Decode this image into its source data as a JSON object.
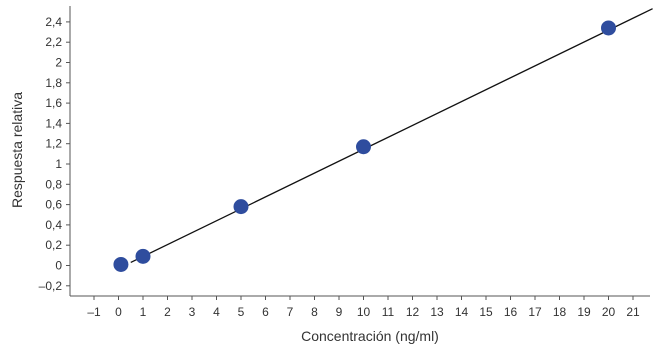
{
  "chart_data": {
    "type": "scatter",
    "title": "",
    "xlabel": "Concentración (ng/ml)",
    "ylabel": "Respuesta relativa",
    "xlim": [
      -2,
      22
    ],
    "ylim": [
      -0.25,
      2.55
    ],
    "grid": false,
    "legend": "none",
    "x_ticks": [
      -1,
      0,
      1,
      2,
      3,
      4,
      5,
      6,
      7,
      8,
      9,
      10,
      11,
      12,
      13,
      14,
      15,
      16,
      17,
      18,
      19,
      20,
      21
    ],
    "x_tick_labels": [
      "–1",
      "0",
      "1",
      "2",
      "3",
      "4",
      "5",
      "6",
      "7",
      "8",
      "9",
      "10",
      "11",
      "12",
      "13",
      "14",
      "15",
      "16",
      "17",
      "18",
      "19",
      "20",
      "21"
    ],
    "y_ticks": [
      -0.2,
      0,
      0.2,
      0.4,
      0.6,
      0.8,
      1,
      1.2,
      1.4,
      1.6,
      1.8,
      2,
      2.2,
      2.4
    ],
    "y_tick_labels": [
      "–0,2",
      "0",
      "0,2",
      "0,4",
      "0,6",
      "0,8",
      "1",
      "1,2",
      "1,4",
      "1,6",
      "1,8",
      "2",
      "2,2",
      "2,4"
    ],
    "points": [
      {
        "x": 0.1,
        "y": 0.01
      },
      {
        "x": 1,
        "y": 0.09
      },
      {
        "x": 5,
        "y": 0.58
      },
      {
        "x": 10,
        "y": 1.17
      },
      {
        "x": 20,
        "y": 2.34
      }
    ],
    "fit_line": {
      "x": [
        0.5,
        21.8
      ],
      "y": [
        0.03,
        2.53
      ]
    },
    "colors": {
      "points": "#2f4d9e",
      "line": "#111111",
      "axis": "#555555"
    }
  }
}
